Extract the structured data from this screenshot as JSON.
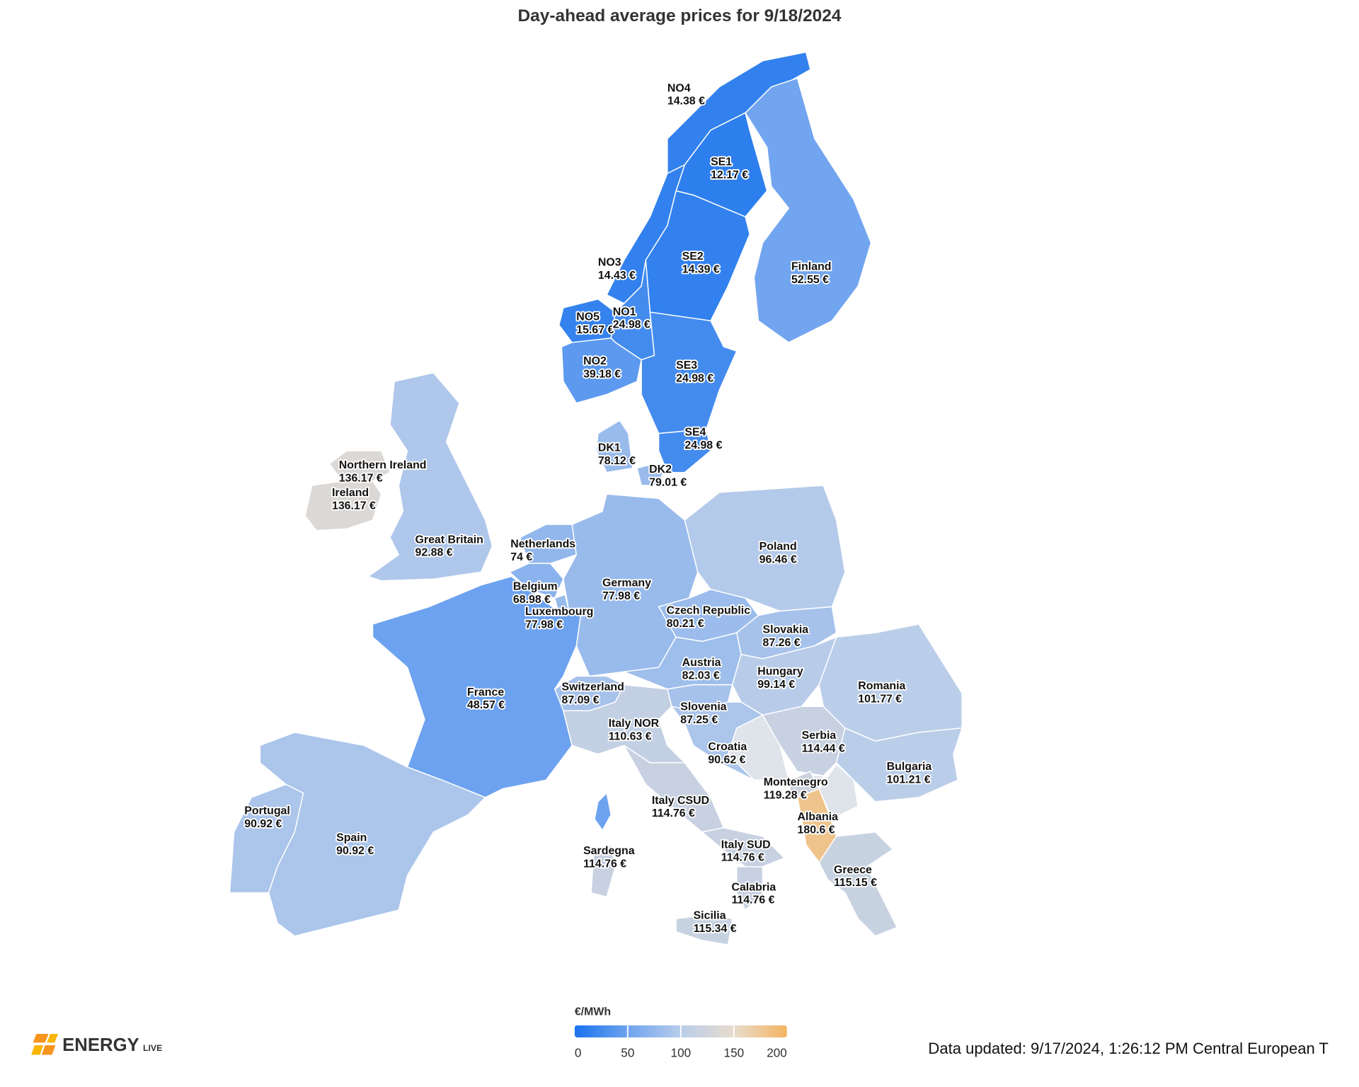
{
  "title": "Day-ahead average prices for 9/18/2024",
  "regions": [
    {
      "name": "NO4",
      "value": 14.38,
      "value_label": "14.38 €"
    },
    {
      "name": "SE1",
      "value": 12.17,
      "value_label": "12.17 €"
    },
    {
      "name": "SE2",
      "value": 14.39,
      "value_label": "14.39 €"
    },
    {
      "name": "NO3",
      "value": 14.43,
      "value_label": "14.43 €"
    },
    {
      "name": "Finland",
      "value": 52.55,
      "value_label": "52.55 €"
    },
    {
      "name": "NO5",
      "value": 15.67,
      "value_label": "15.67 €"
    },
    {
      "name": "NO1",
      "value": 24.98,
      "value_label": "24.98 €"
    },
    {
      "name": "NO2",
      "value": 39.18,
      "value_label": "39.18 €"
    },
    {
      "name": "SE3",
      "value": 24.98,
      "value_label": "24.98 €"
    },
    {
      "name": "SE4",
      "value": 24.98,
      "value_label": "24.98 €"
    },
    {
      "name": "DK1",
      "value": 78.12,
      "value_label": "78.12 €"
    },
    {
      "name": "DK2",
      "value": 79.01,
      "value_label": "79.01 €"
    },
    {
      "name": "Northern Ireland",
      "value": 136.17,
      "value_label": "136.17 €"
    },
    {
      "name": "Ireland",
      "value": 136.17,
      "value_label": "136.17 €"
    },
    {
      "name": "Great Britain",
      "value": 92.88,
      "value_label": "92.88 €"
    },
    {
      "name": "Netherlands",
      "value": 74,
      "value_label": "74 €"
    },
    {
      "name": "Poland",
      "value": 96.46,
      "value_label": "96.46 €"
    },
    {
      "name": "Germany",
      "value": 77.98,
      "value_label": "77.98 €"
    },
    {
      "name": "Belgium",
      "value": 68.98,
      "value_label": "68.98 €"
    },
    {
      "name": "Czech Republic",
      "value": 80.21,
      "value_label": "80.21 €"
    },
    {
      "name": "Luxembourg",
      "value": 77.98,
      "value_label": "77.98 €"
    },
    {
      "name": "Slovakia",
      "value": 87.26,
      "value_label": "87.26 €"
    },
    {
      "name": "Austria",
      "value": 82.03,
      "value_label": "82.03 €"
    },
    {
      "name": "Hungary",
      "value": 99.14,
      "value_label": "99.14 €"
    },
    {
      "name": "Romania",
      "value": 101.77,
      "value_label": "101.77 €"
    },
    {
      "name": "Switzerland",
      "value": 87.09,
      "value_label": "87.09 €"
    },
    {
      "name": "France",
      "value": 48.57,
      "value_label": "48.57 €"
    },
    {
      "name": "Slovenia",
      "value": 87.25,
      "value_label": "87.25 €"
    },
    {
      "name": "Italy NOR",
      "value": 110.63,
      "value_label": "110.63 €"
    },
    {
      "name": "Serbia",
      "value": 114.44,
      "value_label": "114.44 €"
    },
    {
      "name": "Croatia",
      "value": 90.62,
      "value_label": "90.62 €"
    },
    {
      "name": "Bulgaria",
      "value": 101.21,
      "value_label": "101.21 €"
    },
    {
      "name": "Montenegro",
      "value": 119.28,
      "value_label": "119.28 €"
    },
    {
      "name": "Italy CSUD",
      "value": 114.76,
      "value_label": "114.76 €"
    },
    {
      "name": "Portugal",
      "value": 90.92,
      "value_label": "90.92 €"
    },
    {
      "name": "Albania",
      "value": 180.6,
      "value_label": "180.6 €"
    },
    {
      "name": "Spain",
      "value": 90.92,
      "value_label": "90.92 €"
    },
    {
      "name": "Italy SUD",
      "value": 114.76,
      "value_label": "114.76 €"
    },
    {
      "name": "Sardegna",
      "value": 114.76,
      "value_label": "114.76 €"
    },
    {
      "name": "Greece",
      "value": 115.15,
      "value_label": "115.15 €"
    },
    {
      "name": "Calabria",
      "value": 114.76,
      "value_label": "114.76 €"
    },
    {
      "name": "Sicilia",
      "value": 115.34,
      "value_label": "115.34 €"
    }
  ],
  "legend": {
    "title": "€/MWh",
    "range": [
      0,
      200
    ],
    "ticks": [
      0,
      50,
      100,
      150,
      200
    ],
    "colors": [
      "#1a73ee",
      "#6ea3ef",
      "#b9cdea",
      "#e8dccd",
      "#f4b462"
    ]
  },
  "logo": {
    "brand": "ENERGY",
    "suffix": "LIVE"
  },
  "footer": "Data updated: 9/17/2024, 1:26:12 PM Central European T"
}
